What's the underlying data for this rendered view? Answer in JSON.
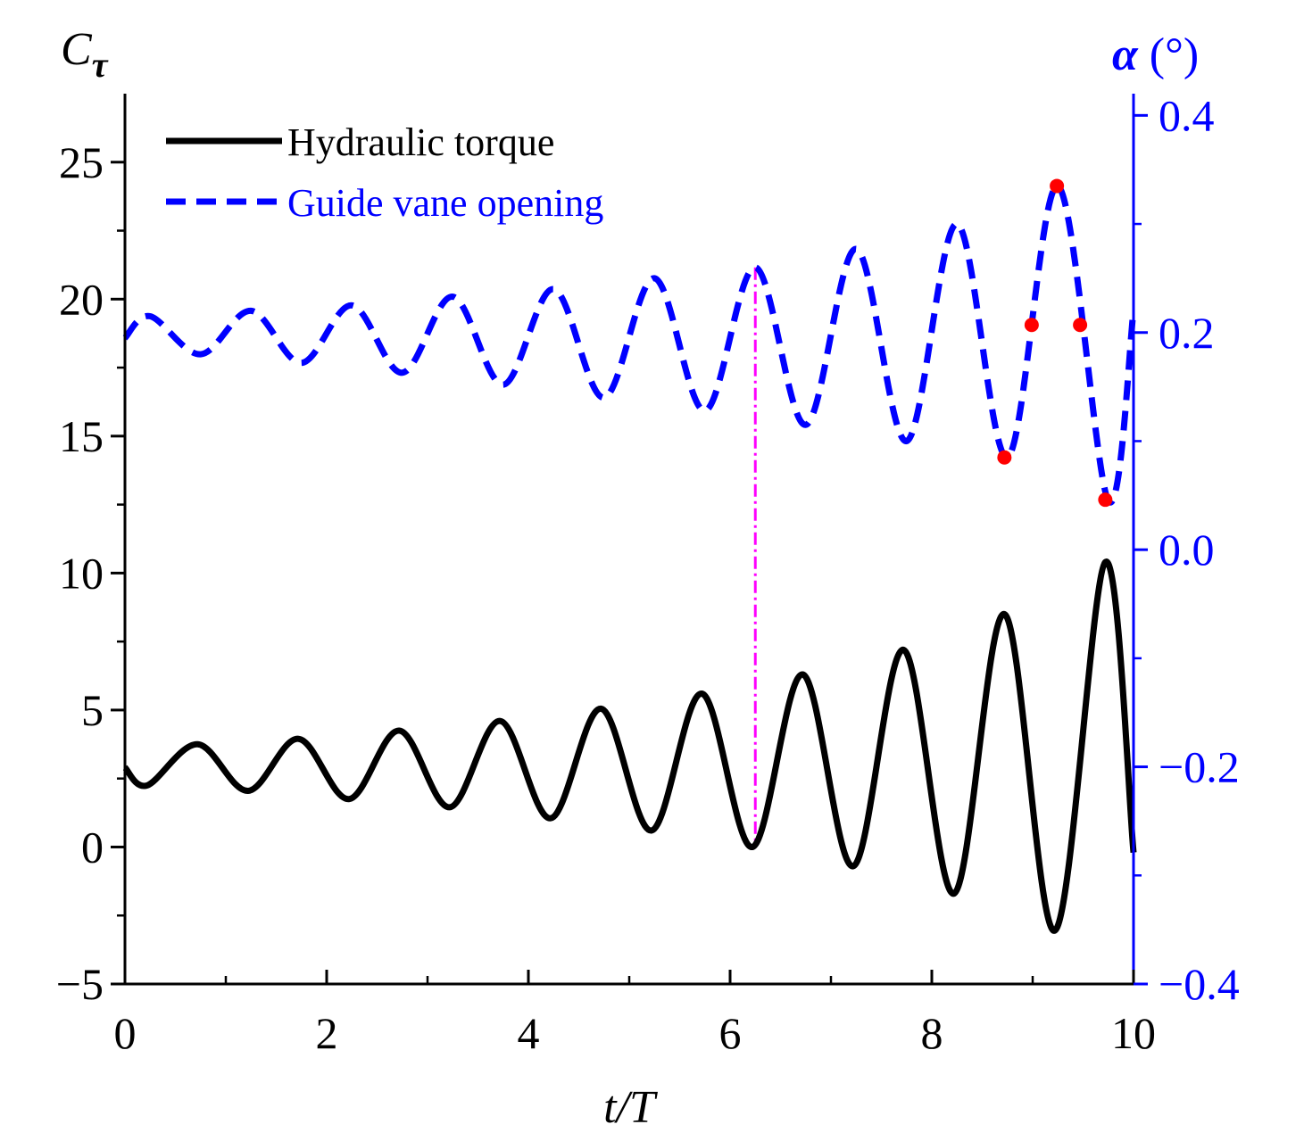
{
  "chart_data": {
    "type": "line",
    "xlabel": "t/T",
    "ylabel_left": "Cτ",
    "ylabel_right": "α (°)",
    "xlim": [
      0,
      10
    ],
    "ylim_left": [
      -5,
      27.5
    ],
    "ylim_right": [
      -0.4,
      0.42
    ],
    "x_ticks": [
      0,
      2,
      4,
      6,
      8,
      10
    ],
    "x_tick_labels": [
      "0",
      "2",
      "4",
      "6",
      "8",
      "10"
    ],
    "y_left_ticks": [
      -5,
      0,
      5,
      10,
      15,
      20,
      25
    ],
    "y_left_tick_labels": [
      "−5",
      "0",
      "5",
      "10",
      "15",
      "20",
      "25"
    ],
    "y_right_ticks": [
      -0.4,
      -0.2,
      0.0,
      0.2,
      0.4
    ],
    "y_right_tick_labels": [
      "−0.4",
      "−0.2",
      "0.0",
      "0.2",
      "0.4"
    ],
    "grid": false,
    "legend_position": "top-left",
    "series": [
      {
        "name": "Hydraulic torque",
        "axis": "left",
        "style": "solid",
        "color": "#000000",
        "x": [
          0,
          0.22,
          0.72,
          1.22,
          1.72,
          2.22,
          2.72,
          3.22,
          3.72,
          4.22,
          4.72,
          5.22,
          5.72,
          6.22,
          6.72,
          7.22,
          7.72,
          8.22,
          8.72,
          9.22,
          9.72,
          10.0
        ],
        "y": [
          2.9,
          2.25,
          3.75,
          2.05,
          3.95,
          1.75,
          4.25,
          1.45,
          4.6,
          1.05,
          5.05,
          0.6,
          5.6,
          0.0,
          6.3,
          -0.7,
          7.2,
          -1.7,
          8.5,
          -3.05,
          10.4,
          -0.2
        ]
      },
      {
        "name": "Guide vane opening",
        "axis": "right",
        "style": "dashed",
        "color": "#0000ff",
        "x": [
          0,
          0.25,
          0.75,
          1.25,
          1.75,
          2.25,
          2.75,
          3.25,
          3.75,
          4.25,
          4.75,
          5.25,
          5.75,
          6.25,
          6.75,
          7.25,
          7.75,
          8.25,
          8.75,
          9.25,
          9.75,
          10.0
        ],
        "y": [
          0.195,
          0.215,
          0.18,
          0.22,
          0.172,
          0.225,
          0.163,
          0.233,
          0.152,
          0.24,
          0.14,
          0.25,
          0.128,
          0.26,
          0.115,
          0.277,
          0.1,
          0.3,
          0.085,
          0.335,
          0.045,
          0.22
        ]
      }
    ],
    "markers": [
      {
        "x": 8.72,
        "y": 0.085
      },
      {
        "x": 8.99,
        "y": 0.207
      },
      {
        "x": 9.24,
        "y": 0.335
      },
      {
        "x": 9.47,
        "y": 0.207
      },
      {
        "x": 9.72,
        "y": 0.046
      }
    ],
    "annotation_line": {
      "x": 6.25,
      "y_top": 0.26,
      "y_bottom_left": 0.0
    }
  },
  "colors": {
    "axis_left": "#000000",
    "axis_right": "#0000ff",
    "marker": "#ff0000",
    "annotation": "#ff00ff"
  }
}
